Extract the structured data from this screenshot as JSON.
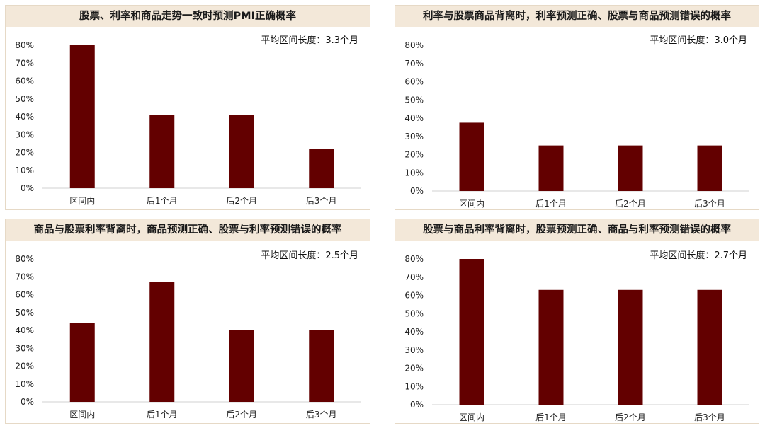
{
  "colors": {
    "bar": "#630000",
    "title_bg": "#f3e8d9",
    "border": "#e6d9c6",
    "axis": "#d0d0d0"
  },
  "chart_data": [
    {
      "type": "bar",
      "title": "股票、利率和商品走势一致时预测PMI正确概率",
      "annotation": "平均区间长度：3.3个月",
      "categories": [
        "区间内",
        "后1个月",
        "后2个月",
        "后3个月"
      ],
      "values": [
        0.8,
        0.41,
        0.41,
        0.22
      ],
      "ylim": [
        0,
        0.8
      ],
      "yticks": [
        "0%",
        "10%",
        "20%",
        "30%",
        "40%",
        "50%",
        "60%",
        "70%",
        "80%"
      ]
    },
    {
      "type": "bar",
      "title": "利率与股票商品背离时，利率预测正确、股票与商品预测错误的概率",
      "annotation": "平均区间长度：3.0个月",
      "categories": [
        "区间内",
        "后1个月",
        "后2个月",
        "后3个月"
      ],
      "values": [
        0.375,
        0.25,
        0.25,
        0.25
      ],
      "ylim": [
        0,
        0.8
      ],
      "yticks": [
        "0%",
        "10%",
        "20%",
        "30%",
        "40%",
        "50%",
        "60%",
        "70%",
        "80%"
      ]
    },
    {
      "type": "bar",
      "title": "商品与股票利率背离时，商品预测正确、股票与利率预测错误的概率",
      "annotation": "平均区间长度：2.5个月",
      "categories": [
        "区间内",
        "后1个月",
        "后2个月",
        "后3个月"
      ],
      "values": [
        0.44,
        0.67,
        0.4,
        0.4
      ],
      "ylim": [
        0,
        0.8
      ],
      "yticks": [
        "0%",
        "10%",
        "20%",
        "30%",
        "40%",
        "50%",
        "60%",
        "70%",
        "80%"
      ]
    },
    {
      "type": "bar",
      "title": "股票与商品利率背离时，股票预测正确、商品与利率预测错误的概率",
      "annotation": "平均区间长度：2.7个月",
      "categories": [
        "区间内",
        "后1个月",
        "后2个月",
        "后3个月"
      ],
      "values": [
        0.8,
        0.63,
        0.63,
        0.63
      ],
      "ylim": [
        0,
        0.8
      ],
      "yticks": [
        "0%",
        "10%",
        "20%",
        "30%",
        "40%",
        "50%",
        "60%",
        "70%",
        "80%"
      ]
    }
  ]
}
